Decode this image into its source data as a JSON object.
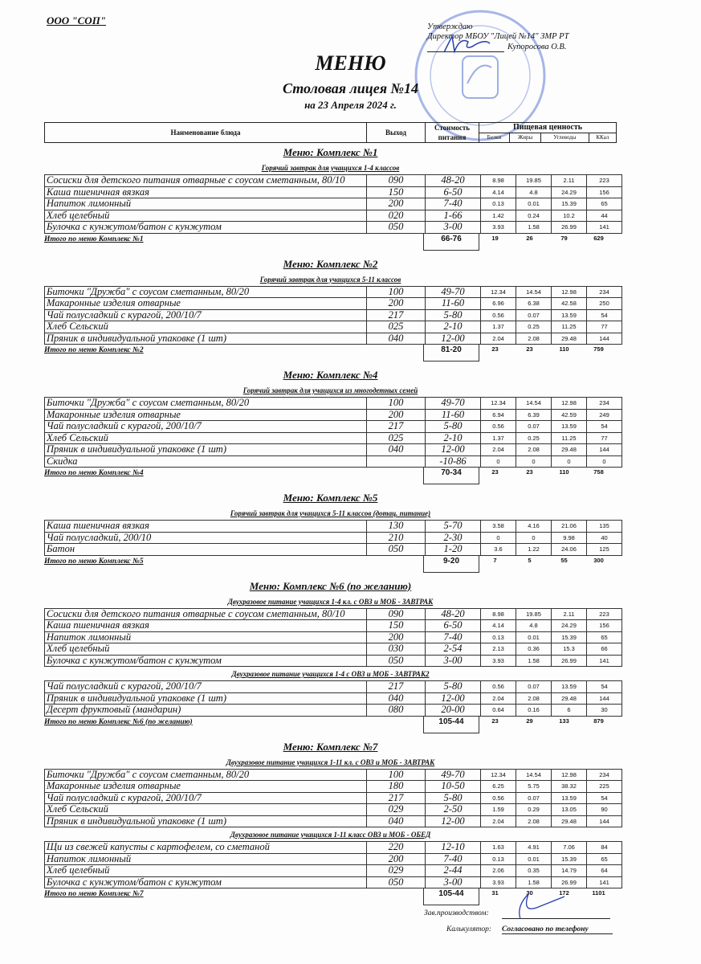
{
  "org": "ООО \"СОП\"",
  "approval": {
    "line1": "Утверждаю",
    "line2": "Директор МБОУ \"Лицей №14\" ЗМР РТ",
    "line3": "Купоросова О.В."
  },
  "title": "МЕНЮ",
  "subtitle": "Столовая лицея №14",
  "date": "на 23 Апреля 2024 г.",
  "header": {
    "name": "Наименование блюда",
    "output": "Выход",
    "cost": "Стоимость питания",
    "nutrition": "Пищевая ценность",
    "protein": "Белки",
    "fat": "Жиры",
    "carbs": "Углеводы",
    "kcal": "ККал"
  },
  "sections": [
    {
      "title": "Меню: Комплекс №1",
      "groups": [
        {
          "title": "Горячий завтрак для учащихся 1-4 классов",
          "rows": [
            [
              "Сосиски для детского питания отварные  с соусом сметанным, 80/10",
              "090",
              "48-20",
              "8.98",
              "19.85",
              "2.11",
              "223"
            ],
            [
              "Каша пшеничная вязкая",
              "150",
              "6-50",
              "4.14",
              "4.8",
              "24.29",
              "156"
            ],
            [
              "Напиток лимонный",
              "200",
              "7-40",
              "0.13",
              "0.01",
              "15.39",
              "65"
            ],
            [
              "Хлеб целебный",
              "020",
              "1-66",
              "1.42",
              "0.24",
              "10.2",
              "44"
            ],
            [
              "Булочка с кунжутом/батон с кунжутом",
              "050",
              "3-00",
              "3.93",
              "1.58",
              "26.99",
              "141"
            ]
          ]
        }
      ],
      "total": {
        "label": "Итого по меню Комплекс №1",
        "cost": "66-76",
        "protein": "19",
        "fat": "26",
        "carbs": "79",
        "kcal": "629"
      }
    },
    {
      "title": "Меню: Комплекс №2",
      "groups": [
        {
          "title": "Горячий завтрак для учащихся 5-11 классов",
          "rows": [
            [
              "Биточки  \"Дружба\" с соусом сметанным, 80/20",
              "100",
              "49-70",
              "12.34",
              "14.54",
              "12.98",
              "234"
            ],
            [
              "Макаронные изделия отварные",
              "200",
              "11-60",
              "6.96",
              "6.38",
              "42.58",
              "250"
            ],
            [
              "Чай полусладкий с курагой, 200/10/7",
              "217",
              "5-80",
              "0.56",
              "0.07",
              "13.59",
              "54"
            ],
            [
              "Хлеб Сельский",
              "025",
              "2-10",
              "1.37",
              "0.25",
              "11.25",
              "77"
            ],
            [
              "Пряник в индивидуальной упаковке (1 шт)",
              "040",
              "12-00",
              "2.04",
              "2.08",
              "29.48",
              "144"
            ]
          ]
        }
      ],
      "total": {
        "label": "Итого по меню Комплекс №2",
        "cost": "81-20",
        "protein": "23",
        "fat": "23",
        "carbs": "110",
        "kcal": "759"
      }
    },
    {
      "title": "Меню: Комплекс №4",
      "groups": [
        {
          "title": "Горячий завтрак для учащихся из многодетных семей",
          "rows": [
            [
              "Биточки  \"Дружба\" с соусом сметанным, 80/20",
              "100",
              "49-70",
              "12.34",
              "14.54",
              "12.98",
              "234"
            ],
            [
              "Макаронные изделия отварные",
              "200",
              "11-60",
              "6.94",
              "6.39",
              "42.59",
              "249"
            ],
            [
              "Чай полусладкий с курагой, 200/10/7",
              "217",
              "5-80",
              "0.56",
              "0.07",
              "13.59",
              "54"
            ],
            [
              "Хлеб Сельский",
              "025",
              "2-10",
              "1.37",
              "0.25",
              "11.25",
              "77"
            ],
            [
              "Пряник в индивидуальной упаковке (1 шт)",
              "040",
              "12-00",
              "2.04",
              "2.08",
              "29.48",
              "144"
            ],
            [
              "Скидка",
              "",
              "-10-86",
              "0",
              "0",
              "0",
              "0"
            ]
          ]
        }
      ],
      "total": {
        "label": "Итого по меню Комплекс №4",
        "cost": "70-34",
        "protein": "23",
        "fat": "23",
        "carbs": "110",
        "kcal": "758"
      }
    },
    {
      "title": "Меню: Комплекс №5",
      "groups": [
        {
          "title": "Горячий завтрак для учащихся 5-11 классов (дотац. питание)",
          "rows": [
            [
              "Каша пшеничная вязкая",
              "130",
              "5-70",
              "3.58",
              "4.16",
              "21.06",
              "135"
            ],
            [
              "Чай полусладкий, 200/10",
              "210",
              "2-30",
              "0",
              "0",
              "9.98",
              "40"
            ],
            [
              "Батон",
              "050",
              "1-20",
              "3.6",
              "1.22",
              "24.06",
              "125"
            ]
          ]
        }
      ],
      "total": {
        "label": "Итого по меню Комплекс №5",
        "cost": "9-20",
        "protein": "7",
        "fat": "5",
        "carbs": "55",
        "kcal": "300"
      }
    },
    {
      "title": "Меню: Комплекс №6 (по желанию)",
      "groups": [
        {
          "title": "Двухразовое питание учащихся 1-4 кл. с ОВЗ и МОБ - ЗАВТРАК",
          "rows": [
            [
              "Сосиски для детского питания отварные  с соусом сметанным, 80/10",
              "090",
              "48-20",
              "8.98",
              "19.85",
              "2.11",
              "223"
            ],
            [
              "Каша пшеничная вязкая",
              "150",
              "6-50",
              "4.14",
              "4.8",
              "24.29",
              "156"
            ],
            [
              "Напиток лимонный",
              "200",
              "7-40",
              "0.13",
              "0.01",
              "15.39",
              "65"
            ],
            [
              "Хлеб целебный",
              "030",
              "2-54",
              "2.13",
              "0.36",
              "15.3",
              "66"
            ],
            [
              "Булочка с кунжутом/батон с кунжутом",
              "050",
              "3-00",
              "3.93",
              "1.58",
              "26.99",
              "141"
            ]
          ]
        },
        {
          "title": "Двухразовое питание учащихся 1-4 с ОВЗ и МОБ - ЗАВТРАК2",
          "rows": [
            [
              "Чай полусладкий с курагой, 200/10/7",
              "217",
              "5-80",
              "0.56",
              "0.07",
              "13.59",
              "54"
            ],
            [
              "Пряник в индивидуальной упаковке (1 шт)",
              "040",
              "12-00",
              "2.04",
              "2.08",
              "29.48",
              "144"
            ],
            [
              "Десерт фруктовый (мандарин)",
              "080",
              "20-00",
              "0.64",
              "0.16",
              "6",
              "30"
            ]
          ]
        }
      ],
      "total": {
        "label": "Итого по меню Комплекс №6 (по желанию)",
        "cost": "105-44",
        "protein": "23",
        "fat": "29",
        "carbs": "133",
        "kcal": "879"
      }
    },
    {
      "title": "Меню: Комплекс №7",
      "groups": [
        {
          "title": "Двухразовое питание учащихся 1-11 кл. с  ОВЗ и МОБ - ЗАВТРАК",
          "rows": [
            [
              "Биточки  \"Дружба\" с соусом сметанным, 80/20",
              "100",
              "49-70",
              "12.34",
              "14.54",
              "12.98",
              "234"
            ],
            [
              "Макаронные изделия отварные",
              "180",
              "10-50",
              "6.25",
              "5.75",
              "38.32",
              "225"
            ],
            [
              "Чай полусладкий с курагой, 200/10/7",
              "217",
              "5-80",
              "0.56",
              "0.07",
              "13.59",
              "54"
            ],
            [
              "Хлеб Сельский",
              "029",
              "2-50",
              "1.59",
              "0.29",
              "13.05",
              "90"
            ],
            [
              "Пряник в индивидуальной упаковке (1 шт)",
              "040",
              "12-00",
              "2.04",
              "2.08",
              "29.48",
              "144"
            ]
          ]
        },
        {
          "title": "Двухразовое питание учащихся 1-11 класс ОВЗ и МОБ - ОБЕД",
          "rows": [
            [
              "Щи из свежей капусты с картофелем, со сметаной",
              "220",
              "12-10",
              "1.63",
              "4.91",
              "7.06",
              "84"
            ],
            [
              "Напиток лимонный",
              "200",
              "7-40",
              "0.13",
              "0.01",
              "15.39",
              "65"
            ],
            [
              "Хлеб целебный",
              "029",
              "2-44",
              "2.06",
              "0.35",
              "14.79",
              "64"
            ],
            [
              "Булочка с кунжутом/батон с кунжутом",
              "050",
              "3-00",
              "3.93",
              "1.58",
              "26.99",
              "141"
            ]
          ]
        }
      ],
      "total": {
        "label": "Итого по меню Комплекс №7",
        "cost": "105-44",
        "protein": "31",
        "fat": "30",
        "carbs": "172",
        "kcal": "1101"
      }
    }
  ],
  "footer": {
    "production_label": "Зав.производством:",
    "calculator_label": "Калькулятор:",
    "calculator_value": "Согласовано по телефону"
  },
  "colors": {
    "stamp": "#3b5fc9",
    "signature": "#2a3fa8"
  }
}
